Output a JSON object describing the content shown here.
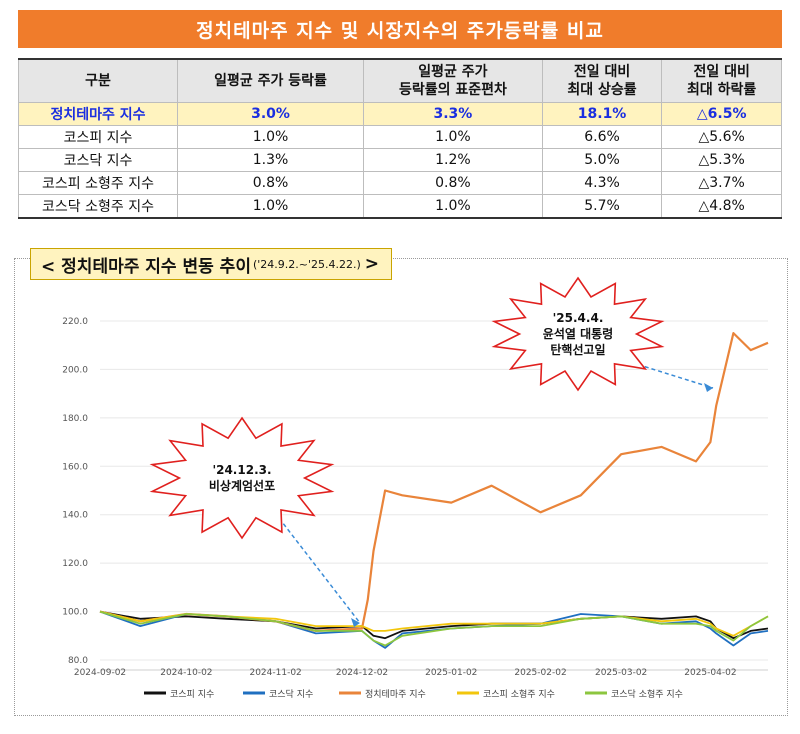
{
  "banner": "정치테마주 지수 및 시장지수의 주가등락률 비교",
  "table": {
    "headers": [
      "구분",
      "일평균 주가 등락률",
      "일평균 주가\n등락률의 표준편차",
      "전일 대비\n최대 상승률",
      "전일 대비\n최대 하락률"
    ],
    "rows": [
      [
        "정치테마주 지수",
        "3.0%",
        "3.3%",
        "18.1%",
        "△6.5%"
      ],
      [
        "코스피 지수",
        "1.0%",
        "1.0%",
        "6.6%",
        "△5.6%"
      ],
      [
        "코스닥 지수",
        "1.3%",
        "1.2%",
        "5.0%",
        "△5.3%"
      ],
      [
        "코스피 소형주 지수",
        "0.8%",
        "0.8%",
        "4.3%",
        "△3.7%"
      ],
      [
        "코스닥 소형주 지수",
        "1.0%",
        "1.0%",
        "5.7%",
        "△4.8%"
      ]
    ]
  },
  "chart_title": {
    "main": "< 정치테마주 지수 변동 추이",
    "sub": "('24.9.2.~'25.4.22.)",
    "end": ">"
  },
  "colors": {
    "kospi": "#111111",
    "kosdaq": "#1f6fc0",
    "theme": "#e9843a",
    "kospi_small": "#f2c60c",
    "kosdaq_small": "#8cc63f",
    "banner": "#f07c2b",
    "callout": "#e0201e"
  },
  "callouts": [
    {
      "line1": "'24.12.3.",
      "line2": "비상계엄선포"
    },
    {
      "line1": "'25.4.4.",
      "line2": "윤석열 대통령",
      "line3": "탄핵선고일"
    }
  ],
  "chart_data": {
    "type": "line",
    "x": [
      "2024-09-02",
      "2024-09-16",
      "2024-10-02",
      "2024-10-16",
      "2024-11-02",
      "2024-11-16",
      "2024-12-02",
      "2024-12-04",
      "2024-12-06",
      "2024-12-10",
      "2024-12-16",
      "2025-01-02",
      "2025-01-16",
      "2025-02-02",
      "2025-02-16",
      "2025-03-02",
      "2025-03-16",
      "2025-03-28",
      "2025-04-02",
      "2025-04-04",
      "2025-04-10",
      "2025-04-16",
      "2025-04-22"
    ],
    "xticks": [
      "2024-09-02",
      "2024-10-02",
      "2024-11-02",
      "2024-12-02",
      "2025-01-02",
      "2025-02-02",
      "2025-03-02",
      "2025-04-02"
    ],
    "ylim": [
      80,
      220
    ],
    "yticks": [
      "80.0",
      "100.0",
      "120.0",
      "140.0",
      "160.0",
      "180.0",
      "200.0",
      "220.0"
    ],
    "series": [
      {
        "name": "코스피 지수",
        "key": "kospi",
        "values": [
          100,
          97,
          98,
          97,
          96,
          93,
          94,
          92,
          90,
          89,
          92,
          94,
          95,
          95,
          97,
          98,
          97,
          98,
          96,
          93,
          89,
          92,
          93
        ]
      },
      {
        "name": "코스닥 지수",
        "key": "kosdaq",
        "values": [
          100,
          94,
          99,
          98,
          96,
          91,
          92,
          90,
          88,
          85,
          91,
          93,
          94,
          95,
          99,
          98,
          95,
          96,
          93,
          91,
          86,
          91,
          92
        ]
      },
      {
        "name": "정치테마주 지수",
        "key": "theme",
        "values": [
          100,
          96,
          99,
          98,
          96,
          92,
          93,
          105,
          125,
          150,
          148,
          145,
          152,
          141,
          148,
          165,
          168,
          162,
          170,
          185,
          215,
          208,
          211
        ]
      },
      {
        "name": "코스피 소형주 지수",
        "key": "kospi_small",
        "values": [
          100,
          96,
          99,
          98,
          97,
          94,
          94,
          93,
          92,
          92,
          93,
          95,
          95,
          95,
          97,
          98,
          96,
          97,
          95,
          93,
          90,
          94,
          98
        ]
      },
      {
        "name": "코스닥 소형주 지수",
        "key": "kosdaq_small",
        "values": [
          100,
          95,
          99,
          98,
          96,
          92,
          92,
          90,
          88,
          86,
          90,
          93,
          94,
          94,
          97,
          98,
          95,
          95,
          94,
          92,
          88,
          94,
          98
        ]
      }
    ]
  }
}
